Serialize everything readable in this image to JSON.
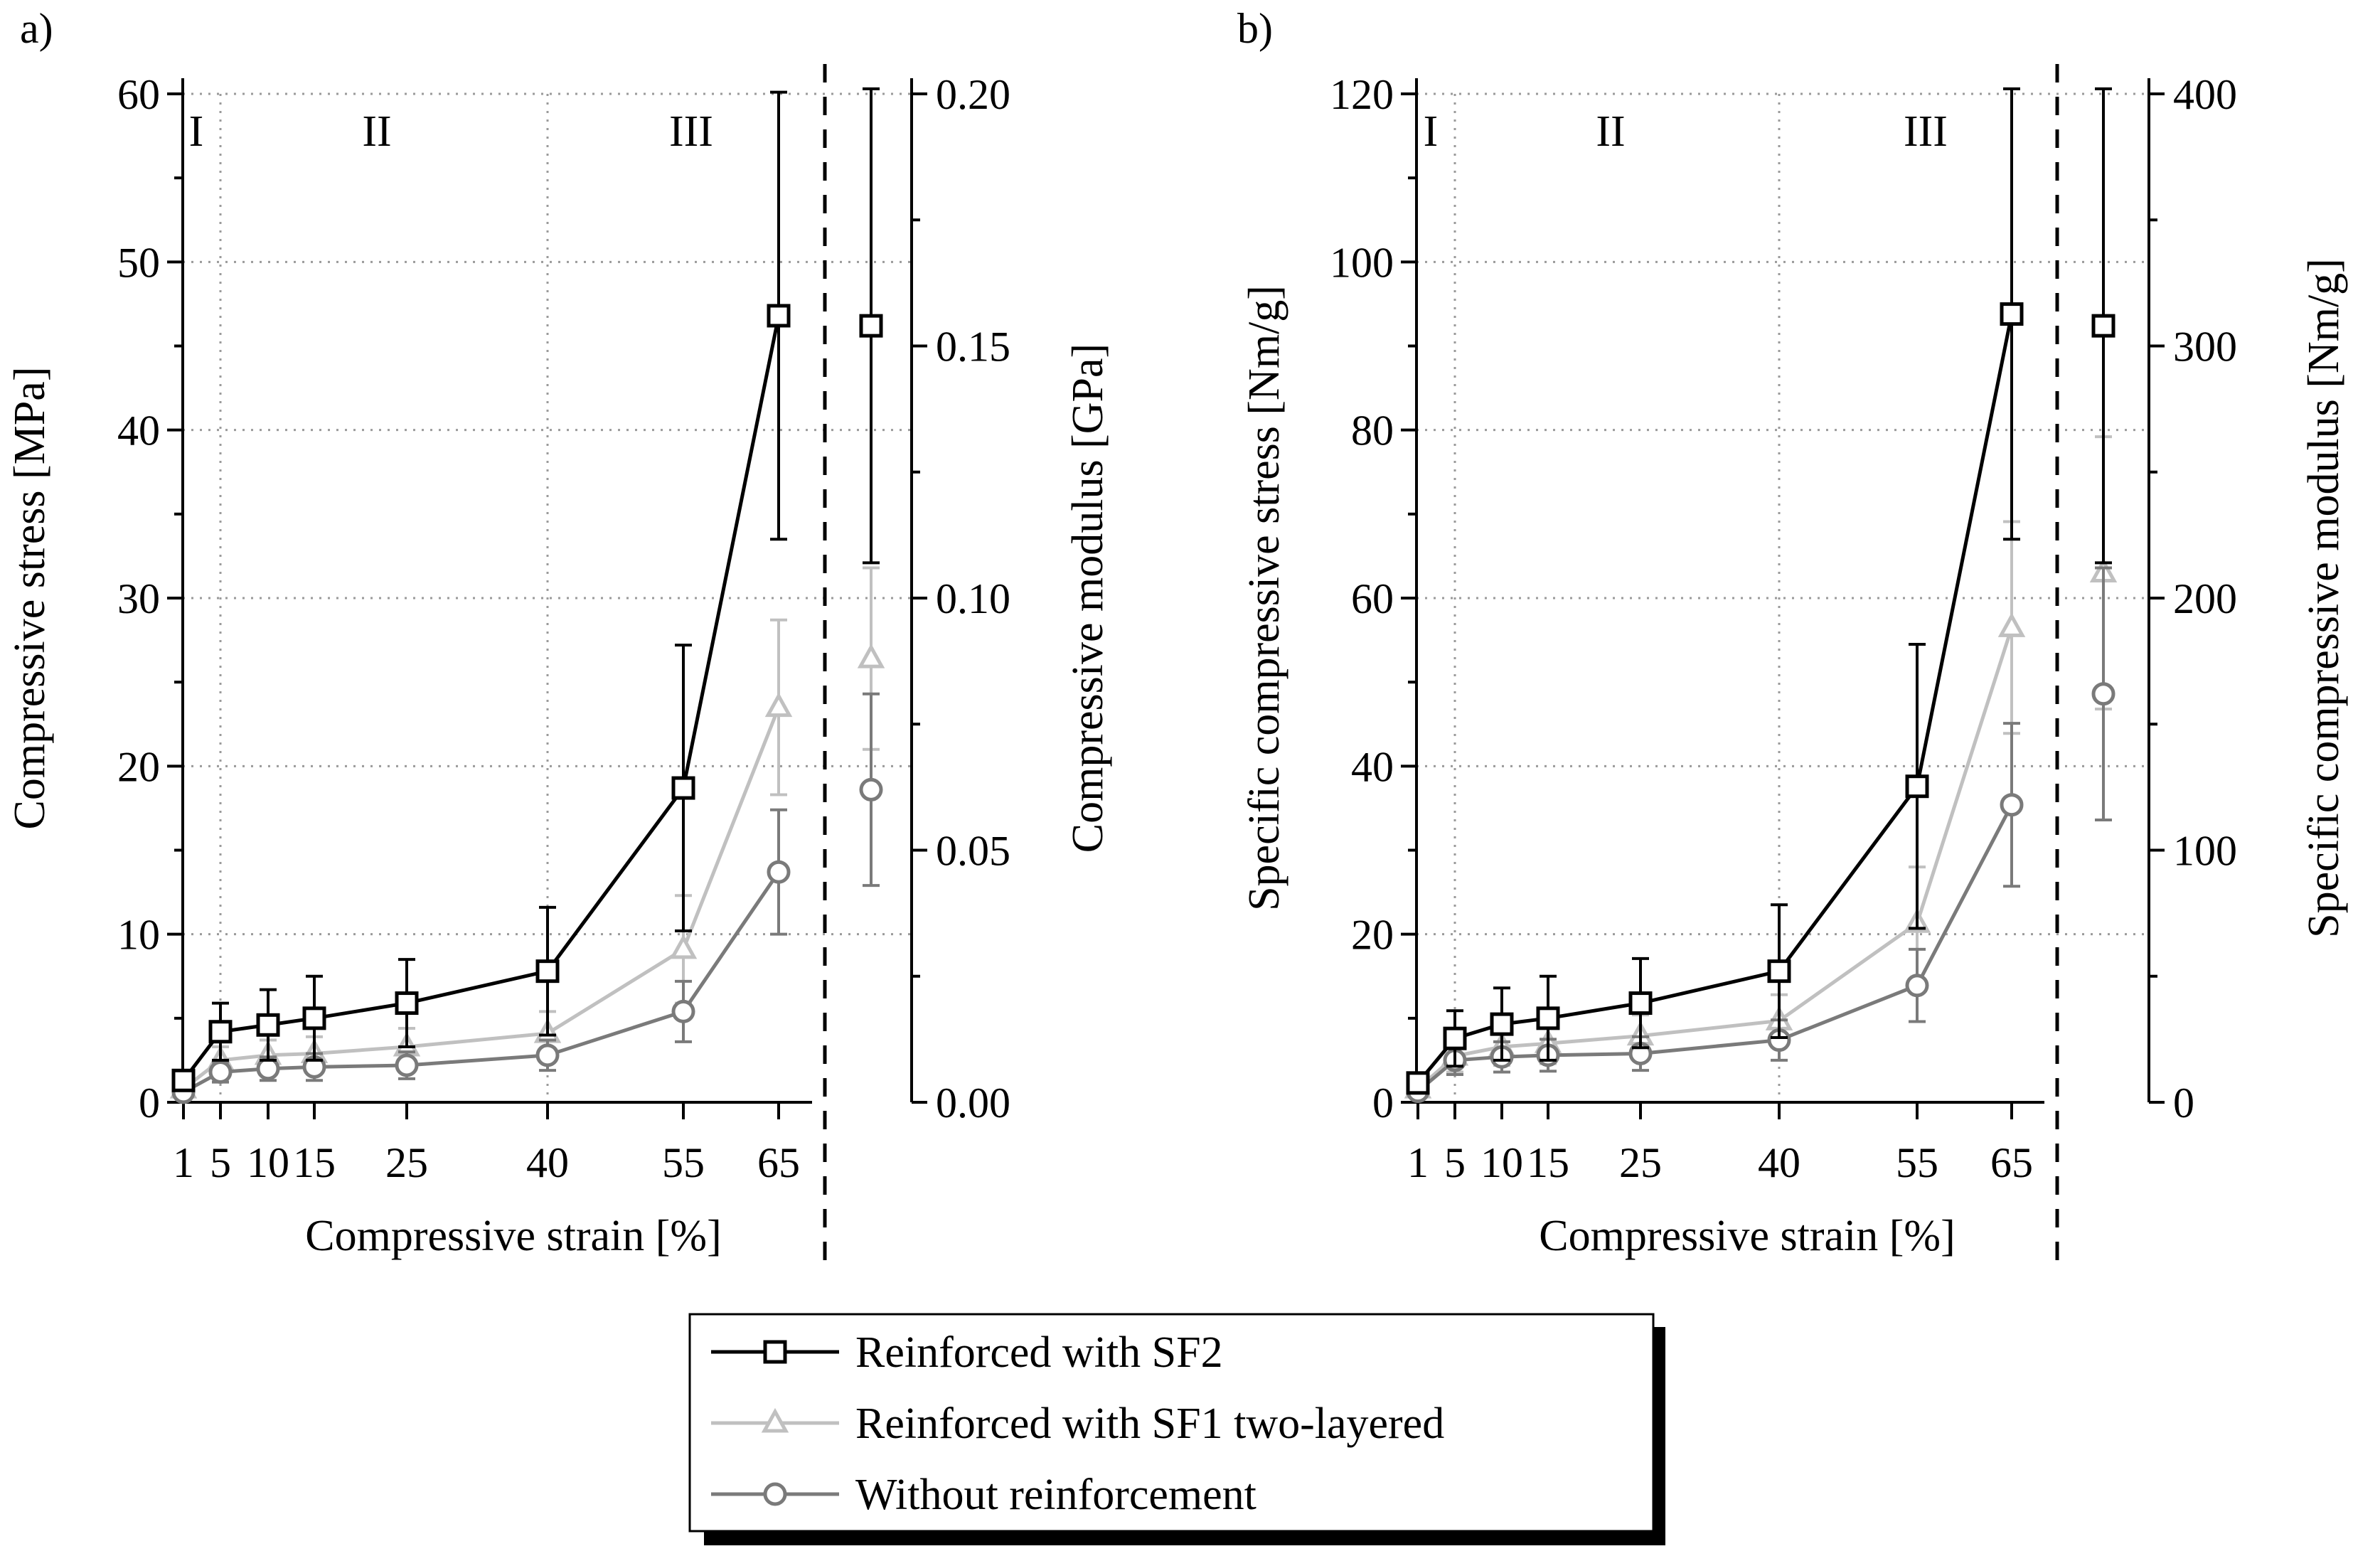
{
  "colors": {
    "sf2": "#000000",
    "sf1": "#c0c0c0",
    "none": "#7a7a7a",
    "grid": "#9a9a9a"
  },
  "legend": {
    "items": [
      {
        "label": "Reinforced with SF2",
        "marker": "square",
        "series": "sf2"
      },
      {
        "label": "Reinforced with SF1 two-layered",
        "marker": "triangle",
        "series": "sf1"
      },
      {
        "label": "Without reinforcement",
        "marker": "circle",
        "series": "none"
      }
    ]
  },
  "chart_data": [
    {
      "panel_label": "a)",
      "type": "line",
      "xlabel": "Compressive strain [%]",
      "ylabel": "Compressive stress [MPa]",
      "y2label": "Compressive modulus [GPa]",
      "x_categories": [
        "1",
        "5",
        "10",
        "15",
        "25",
        "40",
        "55",
        "65"
      ],
      "x": [
        1,
        5,
        10,
        15,
        25,
        40,
        55,
        65
      ],
      "ylim": [
        0,
        60
      ],
      "yticks": [
        0,
        10,
        20,
        30,
        40,
        50,
        60
      ],
      "y2lim": [
        0,
        0.2
      ],
      "y2ticks": [
        "0.00",
        "0.05",
        "0.10",
        "0.15",
        "0.20"
      ],
      "regions": [
        {
          "label": "I",
          "x_start": 1,
          "x_end": 5
        },
        {
          "label": "II",
          "x_start": 5,
          "x_end": 40
        },
        {
          "label": "III",
          "x_start": 40,
          "x_end": 65
        }
      ],
      "grid": true,
      "series": [
        {
          "key": "sf2",
          "name": "Reinforced with SF2",
          "marker": "square",
          "values": [
            1.3,
            4.2,
            4.6,
            5.0,
            5.9,
            7.8,
            18.7,
            46.8
          ],
          "errors": [
            0.5,
            1.7,
            2.1,
            2.5,
            2.6,
            3.8,
            8.5,
            13.3
          ],
          "modulus": 0.154,
          "modulus_error": 0.047
        },
        {
          "key": "sf1",
          "name": "Reinforced with SF1 two-layered",
          "marker": "triangle",
          "values": [
            0.8,
            2.5,
            2.8,
            2.9,
            3.3,
            4.1,
            9.1,
            23.5
          ],
          "errors": [
            0.3,
            0.8,
            0.9,
            1.0,
            1.1,
            1.3,
            3.2,
            5.2
          ],
          "modulus": 0.088,
          "modulus_error": 0.018
        },
        {
          "key": "none",
          "name": "Without reinforcement",
          "marker": "circle",
          "values": [
            0.6,
            1.8,
            2.0,
            2.1,
            2.2,
            2.8,
            5.4,
            13.7
          ],
          "errors": [
            0.3,
            0.6,
            0.7,
            0.8,
            0.8,
            0.9,
            1.8,
            3.7
          ],
          "modulus": 0.062,
          "modulus_error": 0.019
        }
      ]
    },
    {
      "panel_label": "b)",
      "type": "line",
      "xlabel": "Compressive strain [%]",
      "ylabel": "Specific compressive stress [Nm/g]",
      "y2label": "Specific compressive modulus [Nm/g]",
      "x_categories": [
        "1",
        "5",
        "10",
        "15",
        "25",
        "40",
        "55",
        "65"
      ],
      "x": [
        1,
        5,
        10,
        15,
        25,
        40,
        55,
        65
      ],
      "ylim": [
        0,
        120
      ],
      "yticks": [
        0,
        20,
        40,
        60,
        80,
        100,
        120
      ],
      "y2lim": [
        0,
        400
      ],
      "y2ticks": [
        "0",
        "100",
        "200",
        "300",
        "400"
      ],
      "regions": [
        {
          "label": "I",
          "x_start": 1,
          "x_end": 5
        },
        {
          "label": "II",
          "x_start": 5,
          "x_end": 40
        },
        {
          "label": "III",
          "x_start": 40,
          "x_end": 65
        }
      ],
      "grid": true,
      "series": [
        {
          "key": "sf2",
          "name": "Reinforced with SF2",
          "marker": "square",
          "values": [
            2.3,
            7.6,
            9.3,
            10.0,
            11.8,
            15.6,
            37.6,
            93.8
          ],
          "errors": [
            0.9,
            3.3,
            4.3,
            5.0,
            5.3,
            7.9,
            16.9,
            26.8
          ],
          "modulus": 308,
          "modulus_error": 94
        },
        {
          "key": "sf1",
          "name": "Reinforced with SF1 two-layered",
          "marker": "triangle",
          "values": [
            1.6,
            5.5,
            6.6,
            7.0,
            7.9,
            9.7,
            21.3,
            56.5
          ],
          "errors": [
            0.6,
            1.9,
            2.2,
            2.4,
            2.5,
            3.1,
            6.7,
            12.6
          ],
          "modulus": 210,
          "modulus_error": 54
        },
        {
          "key": "none",
          "name": "Without reinforcement",
          "marker": "circle",
          "values": [
            1.3,
            5.0,
            5.4,
            5.6,
            5.8,
            7.4,
            13.9,
            35.4
          ],
          "errors": [
            0.5,
            1.7,
            1.8,
            1.9,
            2.0,
            2.4,
            4.3,
            9.7
          ],
          "modulus": 162,
          "modulus_error": 50
        }
      ]
    }
  ]
}
